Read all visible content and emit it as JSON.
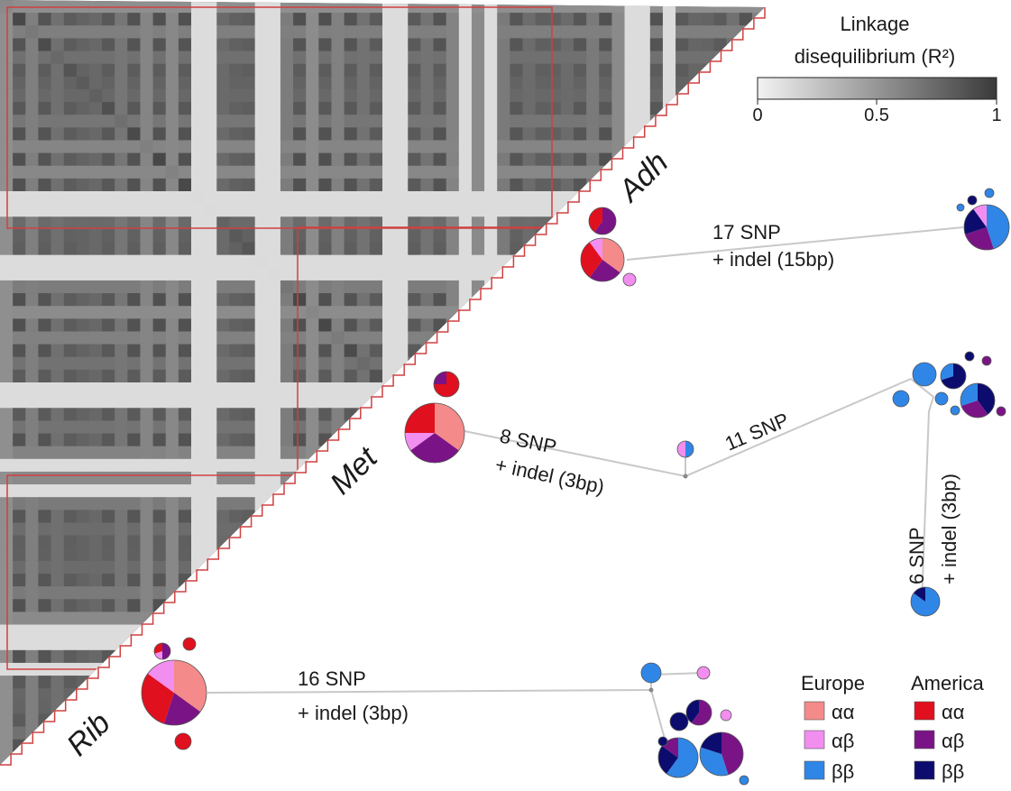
{
  "colorbar": {
    "title_line1": "Linkage",
    "title_line2": "disequilibrium (R²)",
    "ticks": [
      "0",
      "0.5",
      "1"
    ]
  },
  "regions": {
    "adh": "Adh",
    "met": "Met",
    "rib": "Rib"
  },
  "edges": {
    "adh": {
      "line1": "17 SNP",
      "line2": "+ indel (15bp)"
    },
    "met1": {
      "line1": "8 SNP",
      "line2": "+ indel (3bp)"
    },
    "met2": {
      "line1": "11 SNP"
    },
    "met3": {
      "line1": "6 SNP",
      "line2": "+ indel (3bp)"
    },
    "rib": {
      "line1": "16 SNP",
      "line2": "+ indel (3bp)"
    }
  },
  "legend": {
    "europe_title": "Europe",
    "america_title": "America",
    "aa": "αα",
    "ab": "αβ",
    "bb": "ββ"
  },
  "colors": {
    "europe_aa": "#f48a8a",
    "europe_ab": "#f28ef0",
    "europe_bb": "#2f86e6",
    "america_aa": "#e0101e",
    "america_ab": "#7a1486",
    "america_bb": "#0c0c6e"
  }
}
